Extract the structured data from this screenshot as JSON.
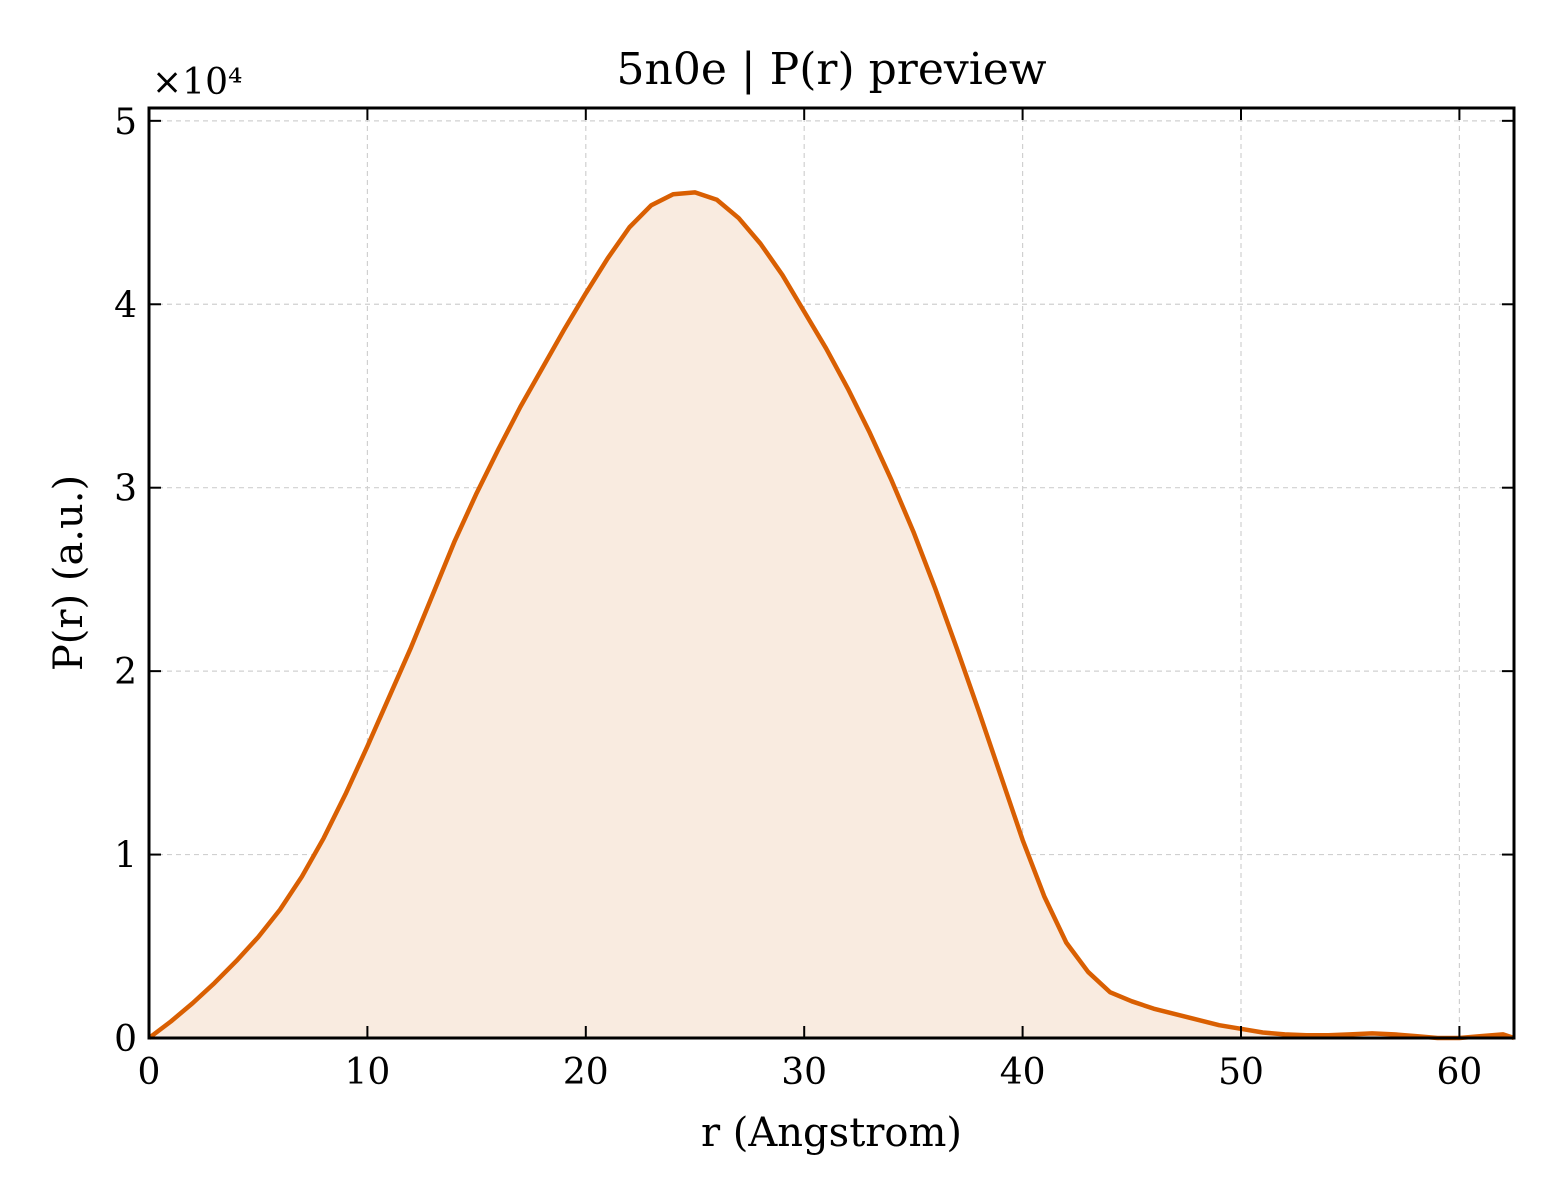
{
  "chart_data": {
    "type": "area",
    "title": "5n0e | P(r) preview",
    "xlabel": "r (Angstrom)",
    "ylabel": "P(r) (a.u.)",
    "y_multiplier": "×10⁴",
    "xlim": [
      0,
      62.5
    ],
    "ylim": [
      0,
      5.07
    ],
    "xticks": [
      0,
      10,
      20,
      30,
      40,
      50,
      60
    ],
    "yticks": [
      0,
      1,
      2,
      3,
      4,
      5
    ],
    "grid": true,
    "legend": "none",
    "color": "#d95f02",
    "fill_color": "#f9ebe0",
    "series": [
      {
        "x": [
          0,
          1,
          2,
          3,
          4,
          5,
          6,
          7,
          8,
          9,
          10,
          11,
          12,
          13,
          14,
          15,
          16,
          17,
          18,
          19,
          20,
          21,
          22,
          23,
          24,
          25,
          26,
          27,
          28,
          29,
          30,
          31,
          32,
          33,
          34,
          35,
          36,
          37,
          38,
          39,
          40,
          41,
          42,
          43,
          44,
          45,
          46,
          47,
          48,
          49,
          50,
          51,
          52,
          53,
          54,
          55,
          56,
          57,
          58,
          59,
          60,
          61,
          62,
          62.5
        ],
        "y": [
          0,
          0.09,
          0.19,
          0.3,
          0.42,
          0.55,
          0.7,
          0.88,
          1.09,
          1.33,
          1.59,
          1.86,
          2.13,
          2.42,
          2.71,
          2.97,
          3.21,
          3.44,
          3.65,
          3.86,
          4.06,
          4.25,
          4.42,
          4.54,
          4.6,
          4.61,
          4.57,
          4.47,
          4.33,
          4.16,
          3.96,
          3.76,
          3.54,
          3.3,
          3.04,
          2.76,
          2.45,
          2.12,
          1.78,
          1.43,
          1.08,
          0.77,
          0.52,
          0.36,
          0.25,
          0.2,
          0.16,
          0.13,
          0.1,
          0.07,
          0.05,
          0.03,
          0.02,
          0.015,
          0.015,
          0.02,
          0.025,
          0.02,
          0.01,
          0.0,
          0.0,
          0.01,
          0.02,
          0.0
        ]
      }
    ]
  }
}
